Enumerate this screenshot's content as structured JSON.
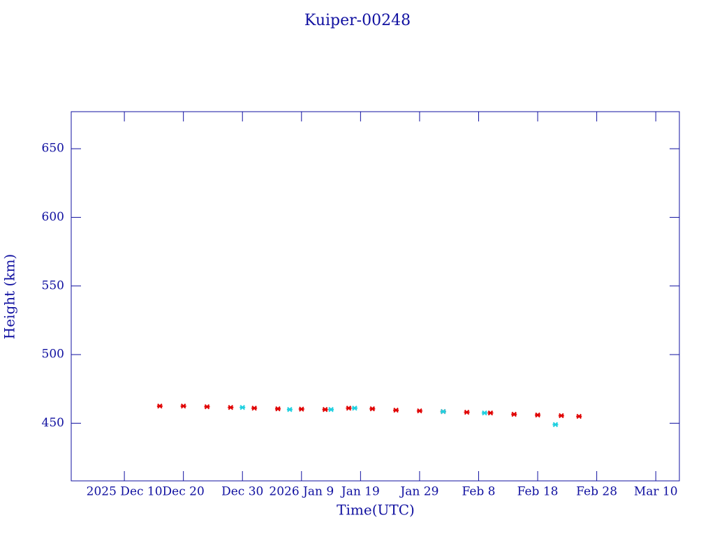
{
  "chart_data": {
    "type": "scatter",
    "title": "Kuiper-00248",
    "x_label": "Time(UTC)",
    "y_label": "Height (km)",
    "xlim": [
      "2025-12-01",
      "2026-03-14"
    ],
    "xticks": [
      {
        "value": "2025-12-10",
        "label": "2025 Dec 10"
      },
      {
        "value": "2025-12-20",
        "label": "Dec 20"
      },
      {
        "value": "2025-12-30",
        "label": "Dec 30"
      },
      {
        "value": "2026-01-09",
        "label": "2026 Jan  9"
      },
      {
        "value": "2026-01-19",
        "label": "Jan 19"
      },
      {
        "value": "2026-01-29",
        "label": "Jan 29"
      },
      {
        "value": "2026-02-08",
        "label": "Feb  8"
      },
      {
        "value": "2026-02-18",
        "label": "Feb 18"
      },
      {
        "value": "2026-02-28",
        "label": "Feb 28"
      },
      {
        "value": "2026-03-10",
        "label": "Mar 10"
      }
    ],
    "ylim": [
      408,
      677
    ],
    "yticks": [
      450,
      500,
      550,
      600,
      650
    ],
    "series": [
      {
        "color": "#e00000",
        "x": [
          "2025-12-16",
          "2025-12-20",
          "2025-12-24",
          "2025-12-28",
          "2026-01-01",
          "2026-01-05",
          "2026-01-09",
          "2026-01-13",
          "2026-01-17",
          "2026-01-21",
          "2026-01-25",
          "2026-01-29",
          "2026-02-02",
          "2026-02-06",
          "2026-02-10",
          "2026-02-14",
          "2026-02-18",
          "2026-02-22",
          "2026-02-25"
        ],
        "values": [
          462.5,
          462.5,
          462,
          461.5,
          461,
          460.5,
          460.3,
          460,
          461,
          460.5,
          459.5,
          459,
          458.5,
          458,
          457.5,
          456.5,
          456,
          455.5,
          455
        ]
      },
      {
        "color": "#20d0e0",
        "x": [
          "2025-12-30",
          "2026-01-07",
          "2026-01-14",
          "2026-01-18",
          "2026-02-02",
          "2026-02-09",
          "2026-02-21"
        ],
        "values": [
          461.5,
          460,
          460,
          461,
          458.5,
          457.5,
          449
        ]
      }
    ]
  }
}
